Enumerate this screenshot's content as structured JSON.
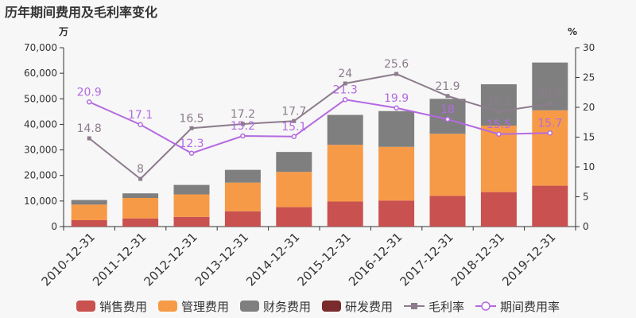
{
  "title": "历年期间费用及毛利率变化",
  "chart_data": {
    "type": "bar",
    "stacked": true,
    "title": "历年期间费用及毛利率变化",
    "categories": [
      "2010-12-31",
      "2011-12-31",
      "2012-12-31",
      "2013-12-31",
      "2014-12-31",
      "2015-12-31",
      "2016-12-31",
      "2017-12-31",
      "2018-12-31",
      "2019-12-31"
    ],
    "y_left": {
      "unit": "万",
      "range": [
        0,
        70000
      ],
      "ticks": [
        "0",
        "10,000",
        "20,000",
        "30,000",
        "40,000",
        "50,000",
        "60,000",
        "70,000"
      ]
    },
    "y_right": {
      "unit": "%",
      "range": [
        0,
        30
      ],
      "ticks": [
        "0",
        "5",
        "10",
        "15",
        "20",
        "25",
        "30"
      ]
    },
    "series": [
      {
        "name": "销售费用",
        "kind": "bar",
        "color": "#c9514f",
        "values": [
          2500,
          3200,
          3800,
          6000,
          7600,
          9800,
          10200,
          12000,
          13500,
          16000
        ]
      },
      {
        "name": "管理费用",
        "kind": "bar",
        "color": "#f79a47",
        "values": [
          6100,
          8000,
          8800,
          11200,
          13800,
          22200,
          21000,
          24300,
          26000,
          29500
        ]
      },
      {
        "name": "财务费用",
        "kind": "bar",
        "color": "#7f7f7f",
        "values": [
          1800,
          1800,
          3700,
          5000,
          7800,
          11700,
          14000,
          13700,
          16200,
          18700
        ]
      },
      {
        "name": "研发费用",
        "kind": "bar",
        "color": "#7a2b2b",
        "values": [
          0,
          0,
          0,
          0,
          0,
          0,
          0,
          0,
          0,
          0
        ]
      },
      {
        "name": "毛利率",
        "kind": "line",
        "axis": "right",
        "color": "#8c7c8c",
        "marker": "square",
        "values": [
          14.8,
          8,
          16.5,
          17.2,
          17.7,
          24,
          25.6,
          21.9,
          19.3,
          20.6
        ],
        "labels": [
          "14.8",
          "8",
          "16.5",
          "17.2",
          "17.7",
          "24",
          "25.6",
          "21.9",
          "19.3",
          "20.6"
        ]
      },
      {
        "name": "期间费用率",
        "kind": "line",
        "axis": "right",
        "color": "#b46ae0",
        "marker": "circle",
        "values": [
          20.9,
          17.1,
          12.3,
          15.2,
          15.1,
          21.3,
          19.9,
          18,
          15.5,
          15.7
        ],
        "labels": [
          "20.9",
          "17.1",
          "12.3",
          "15.2",
          "15.1",
          "21.3",
          "19.9",
          "18",
          "15.5",
          "15.7"
        ]
      }
    ],
    "legend_position": "bottom",
    "grid": false
  }
}
